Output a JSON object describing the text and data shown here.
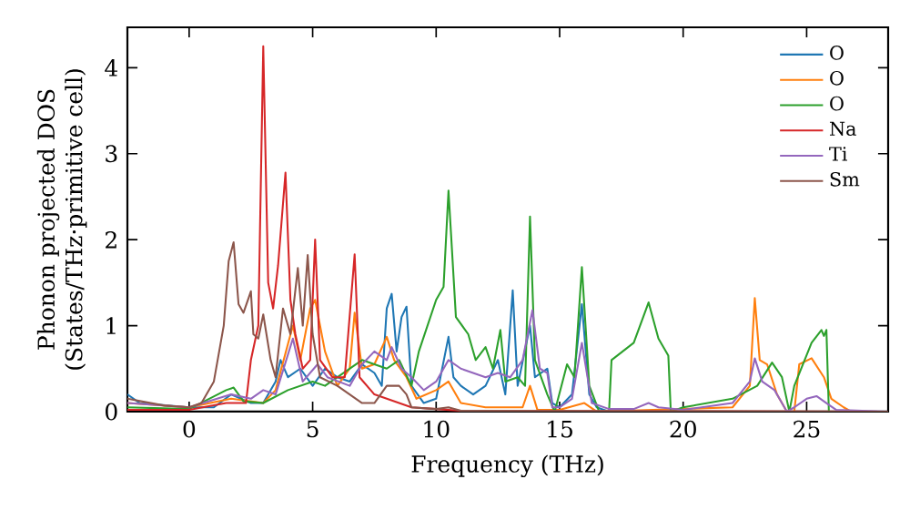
{
  "chart_data": {
    "type": "line",
    "xlabel": "Frequency (THz)",
    "ylabel": "Phonon projected DOS\n(States/THz·primitive cell)",
    "xlim": [
      -2.5,
      28.3
    ],
    "ylim": [
      0,
      4.47
    ],
    "xticks": [
      0,
      5,
      10,
      15,
      20,
      25
    ],
    "yticks": [
      0,
      1,
      2,
      3,
      4
    ],
    "grid": false,
    "legend": "top right",
    "marker": "none",
    "line_style": "solid",
    "series": [
      {
        "name": "O",
        "color": "#1f77b4",
        "x": [
          -2.5,
          -2,
          0,
          1,
          1.7,
          2.5,
          3,
          3.5,
          3.7,
          4,
          4.5,
          5,
          5.5,
          6,
          6.5,
          7,
          7.5,
          7.8,
          8,
          8.2,
          8.4,
          8.6,
          8.8,
          9,
          9.5,
          10,
          10.5,
          10.7,
          11,
          11.5,
          12,
          12.5,
          12.8,
          13.1,
          13.3,
          13.8,
          14,
          14.5,
          14.7,
          15,
          15.5,
          15.9,
          16.2,
          16.5,
          17,
          28.3
        ],
        "values": [
          0.2,
          0.1,
          0.05,
          0.05,
          0.2,
          0.1,
          0.1,
          0.35,
          0.6,
          0.4,
          0.5,
          0.3,
          0.5,
          0.4,
          0.35,
          0.55,
          0.45,
          0.3,
          1.2,
          1.37,
          0.7,
          1.1,
          1.22,
          0.3,
          0.1,
          0.15,
          0.87,
          0.4,
          0.3,
          0.2,
          0.3,
          0.6,
          0.2,
          1.41,
          0.3,
          1.0,
          0.4,
          0.5,
          0.1,
          0.05,
          0.2,
          1.25,
          0.2,
          0.05,
          0,
          0
        ]
      },
      {
        "name": "O",
        "color": "#ff7f0e",
        "x": [
          -2.5,
          0,
          1.7,
          3,
          3.5,
          4.2,
          4.5,
          4.9,
          5.1,
          5.5,
          6,
          6.5,
          6.7,
          7,
          7.5,
          8,
          8.3,
          8.8,
          9.2,
          10,
          10.5,
          11,
          12,
          13,
          13.5,
          13.8,
          14.1,
          15,
          16,
          16.5,
          22,
          22.7,
          22.9,
          23.1,
          23.4,
          23.8,
          24.2,
          24.5,
          24.7,
          25.2,
          25.7,
          26,
          26.5,
          26.8,
          28.3
        ],
        "values": [
          0.1,
          0.05,
          0.15,
          0.1,
          0.25,
          1.0,
          0.6,
          1.2,
          1.3,
          0.7,
          0.3,
          0.5,
          1.15,
          0.5,
          0.55,
          0.87,
          0.6,
          0.4,
          0.15,
          0.25,
          0.35,
          0.1,
          0.05,
          0.05,
          0.05,
          0.3,
          0.02,
          0.02,
          0.1,
          0,
          0.05,
          0.3,
          1.32,
          0.6,
          0.55,
          0.2,
          0,
          0,
          0.55,
          0.62,
          0.4,
          0.15,
          0.05,
          0,
          0
        ]
      },
      {
        "name": "O",
        "color": "#2ca02c",
        "x": [
          -2.5,
          0,
          1.5,
          1.8,
          2.2,
          3,
          4,
          5,
          5.5,
          6.5,
          7,
          8,
          8.5,
          9,
          9.3,
          10,
          10.3,
          10.5,
          10.8,
          11.3,
          11.6,
          12,
          12.3,
          12.6,
          12.8,
          13.3,
          13.6,
          13.8,
          14,
          14.5,
          14.8,
          15.3,
          15.6,
          15.9,
          16.2,
          16.6,
          17,
          17.1,
          18,
          18.6,
          19,
          19.4,
          19.5,
          20,
          22,
          23,
          23.6,
          24,
          24.3,
          24.5,
          25.2,
          25.6,
          25.7,
          25.8,
          25.9,
          28.3
        ],
        "values": [
          0.05,
          0.03,
          0.25,
          0.28,
          0.12,
          0.1,
          0.25,
          0.35,
          0.3,
          0.5,
          0.6,
          0.5,
          0.6,
          0.3,
          0.7,
          1.3,
          1.45,
          2.57,
          1.1,
          0.9,
          0.6,
          0.75,
          0.5,
          0.95,
          0.35,
          0.4,
          0.3,
          2.27,
          0.6,
          0.2,
          0,
          0.55,
          0.4,
          1.68,
          0.3,
          0,
          0,
          0.6,
          0.8,
          1.27,
          0.85,
          0.65,
          0,
          0.05,
          0.15,
          0.3,
          0.57,
          0.4,
          0,
          0.3,
          0.8,
          0.95,
          0.88,
          0.95,
          0,
          0
        ]
      },
      {
        "name": "Na",
        "color": "#d62728",
        "x": [
          -2.5,
          0,
          1.5,
          2.3,
          2.5,
          2.8,
          3,
          3.2,
          3.4,
          3.6,
          3.9,
          4.1,
          4.3,
          4.6,
          4.9,
          5.1,
          5.3,
          5.8,
          6.3,
          6.7,
          6.9,
          7.5,
          8,
          8.5,
          9,
          10,
          11,
          28.3
        ],
        "values": [
          0.02,
          0.02,
          0.1,
          0.1,
          0.6,
          1.0,
          4.25,
          1.5,
          1.2,
          1.7,
          2.78,
          1.3,
          0.9,
          0.5,
          0.6,
          2.0,
          0.6,
          0.4,
          0.4,
          1.83,
          0.4,
          0.2,
          0.15,
          0.1,
          0.05,
          0.03,
          0.01,
          0
        ]
      },
      {
        "name": "Ti",
        "color": "#9467bd",
        "x": [
          -2.5,
          0,
          1.7,
          2.5,
          3,
          3.5,
          4.2,
          4.6,
          5.2,
          5.6,
          6.5,
          7,
          7.5,
          8,
          8.2,
          8.6,
          9,
          9.5,
          10,
          10.5,
          11,
          12,
          12.5,
          13,
          13.5,
          13.9,
          14.2,
          14.5,
          14.7,
          15,
          15.5,
          15.9,
          16.3,
          17,
          18,
          18.6,
          19,
          20,
          22,
          22.7,
          22.9,
          23.2,
          23.7,
          24.2,
          24.5,
          25,
          25.4,
          25.8,
          26.2,
          28.3
        ],
        "values": [
          0.1,
          0.05,
          0.2,
          0.15,
          0.25,
          0.2,
          0.85,
          0.35,
          0.55,
          0.4,
          0.3,
          0.55,
          0.7,
          0.6,
          0.75,
          0.5,
          0.4,
          0.25,
          0.35,
          0.6,
          0.5,
          0.4,
          0.45,
          0.4,
          0.6,
          1.18,
          0.5,
          0.45,
          0.05,
          0.05,
          0.15,
          0.8,
          0.1,
          0.03,
          0.03,
          0.1,
          0.05,
          0.02,
          0.1,
          0.35,
          0.62,
          0.35,
          0.25,
          0,
          0.05,
          0.15,
          0.18,
          0.1,
          0.02,
          0
        ]
      },
      {
        "name": "Sm",
        "color": "#8c564b",
        "x": [
          -2.5,
          -1,
          0,
          0.5,
          1,
          1.4,
          1.6,
          1.8,
          2,
          2.2,
          2.5,
          2.6,
          2.8,
          3,
          3.3,
          3.5,
          3.8,
          4.1,
          4.4,
          4.6,
          4.8,
          5,
          5.3,
          6,
          6.5,
          7,
          7.5,
          8,
          8.5,
          8.8,
          9,
          10,
          10.5,
          11,
          28.3
        ],
        "values": [
          0.15,
          0.07,
          0.05,
          0.1,
          0.35,
          1.0,
          1.75,
          1.97,
          1.25,
          1.15,
          1.4,
          0.9,
          0.85,
          1.13,
          0.6,
          0.4,
          1.2,
          0.9,
          1.67,
          1.0,
          1.82,
          0.9,
          0.4,
          0.3,
          0.2,
          0.1,
          0.1,
          0.3,
          0.3,
          0.2,
          0.05,
          0.03,
          0.05,
          0.01,
          0
        ]
      }
    ]
  }
}
